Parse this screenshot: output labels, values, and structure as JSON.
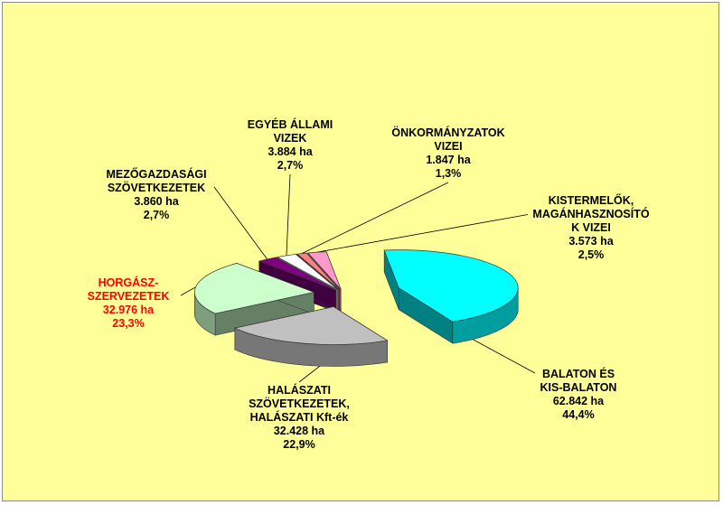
{
  "chart_data": {
    "type": "pie",
    "style": "3d-exploded",
    "title": "",
    "slices": [
      {
        "lines": [
          "BALATON ÉS",
          "KIS-BALATON"
        ],
        "area": "62.842  ha",
        "value": 44.4,
        "pct": "44,4%",
        "color": "#00ffff",
        "label_color": "#000000"
      },
      {
        "lines": [
          "HALÁSZATI",
          "SZÖVETKEZETEK,",
          "HALÁSZATI  Kft-ék"
        ],
        "area": "32.428 ha",
        "value": 22.9,
        "pct": "22,9%",
        "color": "#c0c0c0",
        "label_color": "#000000"
      },
      {
        "lines": [
          "HORGÁSZ-",
          "SZERVEZETEK"
        ],
        "area": "32.976 ha",
        "value": 23.3,
        "pct": "23,3%",
        "color": "#ccffcc",
        "label_color": "#ff0000"
      },
      {
        "lines": [
          "MEZŐGAZDASÁGI",
          "SZÖVETKEZETEK"
        ],
        "area": "3.860 ha",
        "value": 2.7,
        "pct": "2,7%",
        "color": "#800080",
        "label_color": "#000000"
      },
      {
        "lines": [
          "EGYÉB ÁLLAMI",
          "VIZEK"
        ],
        "area": "3.884 ha",
        "value": 2.7,
        "pct": "2,7%",
        "color": "#ffffff",
        "label_color": "#000000"
      },
      {
        "lines": [
          "ÖNKORMÁNYZATOK",
          "VIZEI"
        ],
        "area": "1.847  ha",
        "value": 1.3,
        "pct": "1,3%",
        "color": "#ff8080",
        "label_color": "#000000"
      },
      {
        "lines": [
          "KISTERMELŐK,",
          "MAGÁNHASZNOSÍTÓ",
          "K VIZEI"
        ],
        "area": "3.573  ha",
        "value": 2.5,
        "pct": "2,5%",
        "color": "#ff99cc",
        "label_color": "#000000"
      }
    ]
  }
}
